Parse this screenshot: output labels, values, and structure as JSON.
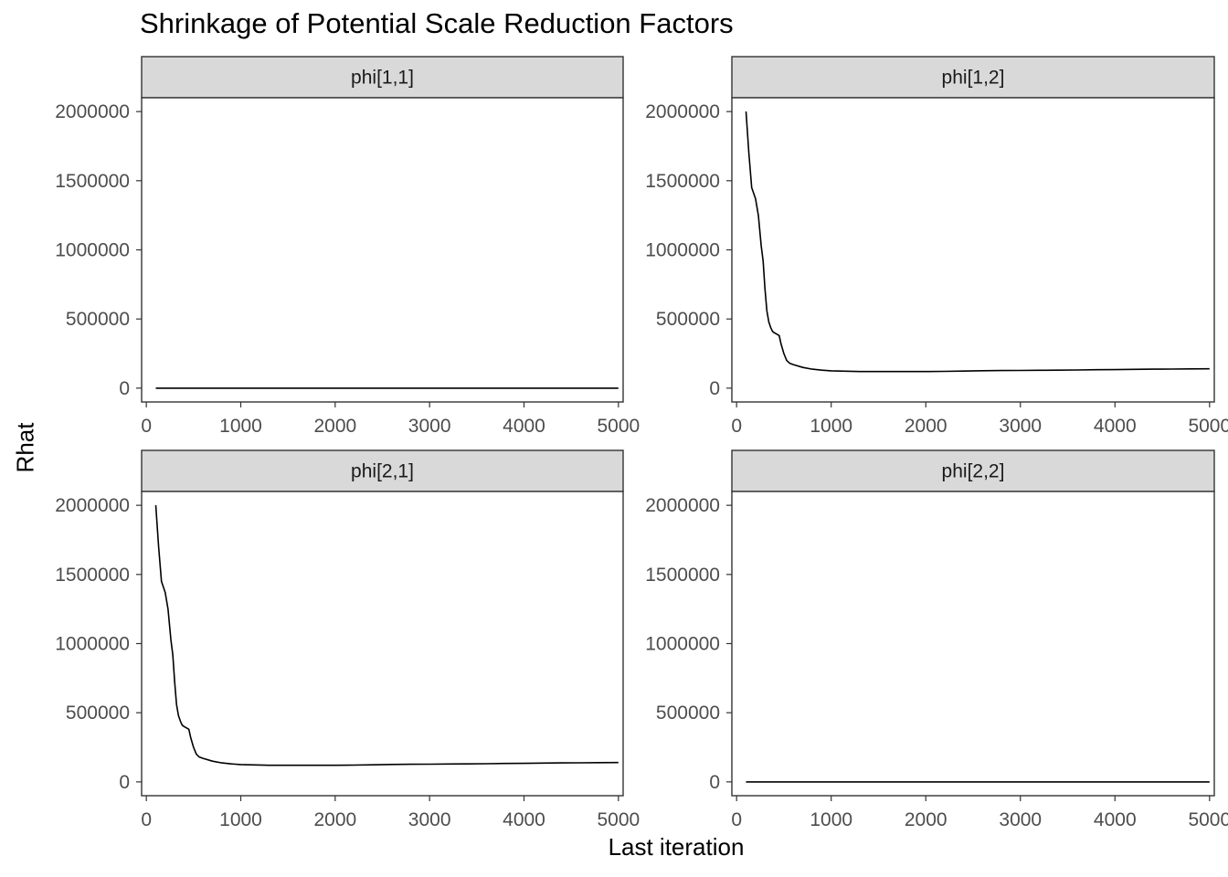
{
  "title": "Shrinkage of Potential Scale Reduction Factors",
  "xlabel": "Last iteration",
  "ylabel": "Rhat",
  "chart_data": {
    "type": "line",
    "title": "Shrinkage of Potential Scale Reduction Factors",
    "xlabel": "Last iteration",
    "ylabel": "Rhat",
    "xlim": [
      -50,
      5050
    ],
    "ylim": [
      -100000,
      2100000
    ],
    "x_ticks": [
      0,
      1000,
      2000,
      3000,
      4000,
      5000
    ],
    "x_tick_labels": [
      "0",
      "1000",
      "2000",
      "3000",
      "4000",
      "5000"
    ],
    "y_ticks": [
      0,
      500000,
      1000000,
      1500000,
      2000000
    ],
    "y_tick_labels": [
      "0",
      "500000",
      "1000000",
      "1500000",
      "2000000"
    ],
    "grid": false,
    "line_color": "#000000",
    "strip_fill": "#d9d9d9",
    "facets": [
      {
        "name": "phi[1,1]",
        "x": [
          100,
          5000
        ],
        "y": [
          1,
          1
        ]
      },
      {
        "name": "phi[1,2]",
        "x": [
          100,
          130,
          160,
          200,
          230,
          260,
          280,
          300,
          320,
          340,
          360,
          380,
          400,
          450,
          470,
          500,
          530,
          560,
          600,
          700,
          800,
          900,
          1000,
          1100,
          1200,
          1300,
          1400,
          1500,
          1600,
          1700,
          1800,
          1900,
          2000,
          2200,
          2400,
          2600,
          2800,
          3000,
          3200,
          3400,
          3600,
          3800,
          4000,
          4200,
          4400,
          4600,
          4800,
          5000
        ],
        "y": [
          2000000,
          1700000,
          1450000,
          1370000,
          1250000,
          1030000,
          920000,
          720000,
          560000,
          480000,
          440000,
          410000,
          400000,
          380000,
          320000,
          250000,
          200000,
          180000,
          170000,
          150000,
          137000,
          130000,
          125000,
          123000,
          122000,
          120000,
          120000,
          120000,
          120000,
          120000,
          120000,
          120000,
          120000,
          121000,
          123000,
          126000,
          127000,
          128000,
          129000,
          130000,
          131000,
          133000,
          134000,
          136000,
          137000,
          138000,
          139000,
          140000
        ]
      },
      {
        "name": "phi[2,1]",
        "x": [
          100,
          130,
          160,
          200,
          230,
          260,
          280,
          300,
          320,
          340,
          360,
          380,
          400,
          450,
          470,
          500,
          530,
          560,
          600,
          700,
          800,
          900,
          1000,
          1100,
          1200,
          1300,
          1400,
          1500,
          1600,
          1700,
          1800,
          1900,
          2000,
          2200,
          2400,
          2600,
          2800,
          3000,
          3200,
          3400,
          3600,
          3800,
          4000,
          4200,
          4400,
          4600,
          4800,
          5000
        ],
        "y": [
          2000000,
          1700000,
          1450000,
          1370000,
          1250000,
          1030000,
          920000,
          720000,
          560000,
          480000,
          440000,
          410000,
          400000,
          380000,
          320000,
          250000,
          200000,
          180000,
          170000,
          150000,
          137000,
          130000,
          125000,
          123000,
          122000,
          120000,
          120000,
          120000,
          120000,
          120000,
          120000,
          120000,
          120000,
          121000,
          123000,
          126000,
          127000,
          128000,
          129000,
          130000,
          131000,
          133000,
          134000,
          136000,
          137000,
          138000,
          139000,
          140000
        ]
      },
      {
        "name": "phi[2,2]",
        "x": [
          100,
          5000
        ],
        "y": [
          1,
          1
        ]
      }
    ]
  }
}
